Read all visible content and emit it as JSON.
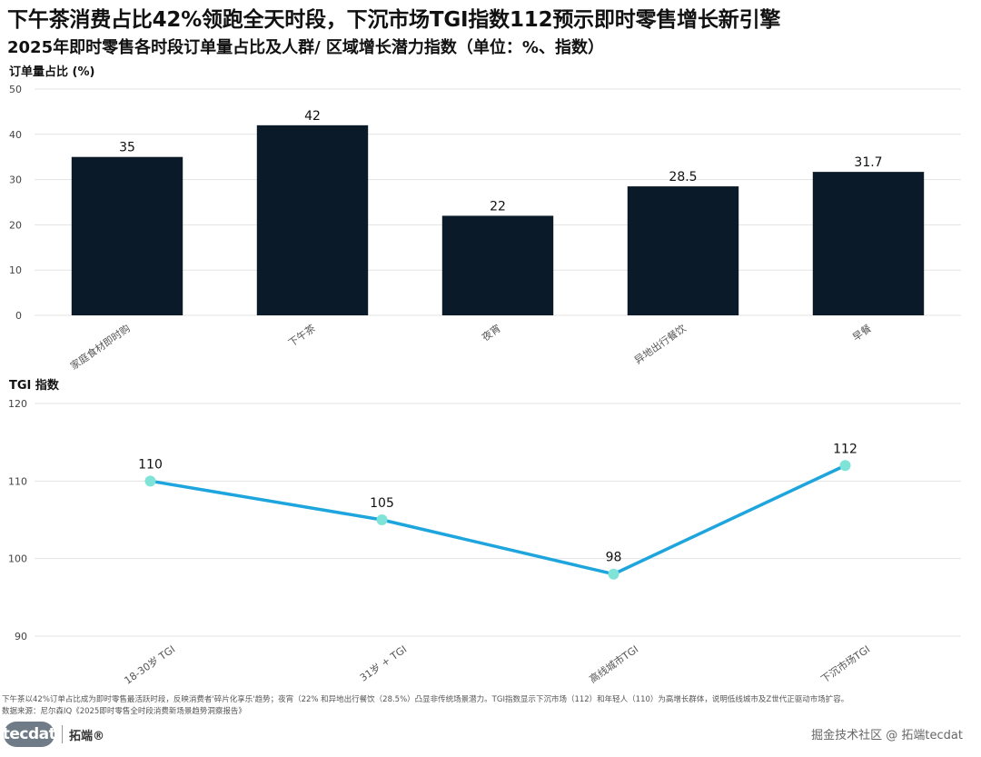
{
  "title": "下午茶消费占比42%领跑全天时段，下沉市场TGI指数112预示即时零售增长新引擎",
  "subtitle": "2025年即时零售各时段订单量占比及人群/ 区域增长潜力指数（单位：%、指数）",
  "chart_data": [
    {
      "type": "bar",
      "ylabel": "订单量占比 (%)",
      "ylim": [
        0,
        50
      ],
      "yticks": [
        0,
        10,
        20,
        30,
        40,
        50
      ],
      "categories": [
        "家庭食材即时购",
        "下午茶",
        "夜宵",
        "异地出行餐饮",
        "早餐"
      ],
      "values": [
        35,
        42,
        22,
        28.5,
        31.7
      ],
      "value_labels": [
        "35",
        "42",
        "22",
        "28.5",
        "31.7"
      ],
      "bar_color": "#0b1a28",
      "grid": true
    },
    {
      "type": "line",
      "ylabel": "TGI 指数",
      "ylim": [
        90,
        120
      ],
      "yticks": [
        90,
        100,
        110,
        120
      ],
      "categories": [
        "18-30岁 TGI",
        "31岁 + TGI",
        "高线城市TGI",
        "下沉市场TGI"
      ],
      "values": [
        110,
        105,
        98,
        112
      ],
      "value_labels": [
        "110",
        "105",
        "98",
        "112"
      ],
      "line_color": "#1ea5dd",
      "marker_color": "#7fe3d8",
      "grid": true
    }
  ],
  "note": {
    "line1": "下午茶以42%订单占比成为即时零售最活跃时段，反映消费者'碎片化享乐'趋势；夜宵（22% 和异地出行餐饮（28.5%）凸显非传统场景潜力。TGI指数显示下沉市场（112）和年轻人（110）为高增长群体，说明低线城市及Z世代正驱动市场扩容。",
    "line2": "数据来源：尼尔森IQ《2025即时零售全时段消费新场景趋势洞察报告》"
  },
  "brand": {
    "logo": "tecdat",
    "name": "拓端®"
  },
  "watermark": "掘金技术社区 @ 拓端tecdat"
}
